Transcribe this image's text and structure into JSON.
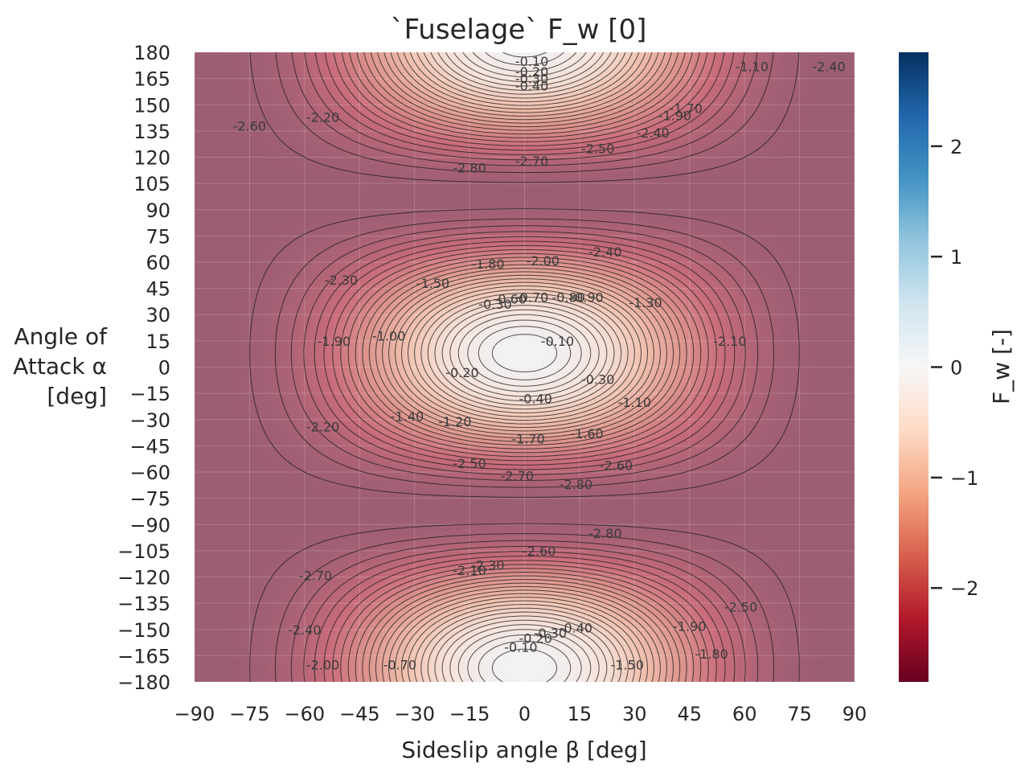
{
  "chart_data": {
    "type": "heatmap",
    "title": "`Fuselage` F_w [0]",
    "xlabel": "Sideslip angle β [deg]",
    "ylabel_lines": [
      "Angle of",
      "Attack α",
      "[deg]"
    ],
    "xlim": [
      -90,
      90
    ],
    "ylim": [
      -180,
      180
    ],
    "x_ticks": [
      -90,
      -75,
      -60,
      -45,
      -30,
      -15,
      0,
      15,
      30,
      45,
      60,
      75,
      90
    ],
    "y_ticks": [
      180,
      165,
      150,
      135,
      120,
      105,
      90,
      75,
      60,
      45,
      30,
      15,
      0,
      -15,
      -30,
      -45,
      -60,
      -75,
      -90,
      -105,
      -120,
      -135,
      -150,
      -165,
      -180
    ],
    "colormap": "RdBu",
    "color_range": [
      -2.85,
      2.85
    ],
    "colorbar_label": "F_w [-]",
    "colorbar_ticks": [
      2,
      1,
      0,
      -1,
      -2
    ],
    "grid": true,
    "contour_levels": [
      -0.1,
      -0.2,
      -0.3,
      -0.4,
      -0.5,
      -0.6,
      -0.7,
      -0.8,
      -0.9,
      -1.0,
      -1.1,
      -1.2,
      -1.3,
      -1.4,
      -1.5,
      -1.6,
      -1.7,
      -1.8,
      -1.9,
      -2.0,
      -2.1,
      -2.2,
      -2.3,
      -2.4,
      -2.5,
      -2.6,
      -2.7,
      -2.8
    ],
    "contour_labels": [
      {
        "text": "-0.10",
        "x": 2,
        "y": 175
      },
      {
        "text": "-0.20",
        "x": 2,
        "y": 169
      },
      {
        "text": "-0.30",
        "x": 2,
        "y": 165
      },
      {
        "text": "-0.40",
        "x": 2,
        "y": 161
      },
      {
        "text": "-1.10",
        "x": 62,
        "y": 172
      },
      {
        "text": "-2.40",
        "x": 83,
        "y": 172
      },
      {
        "text": "-1.70",
        "x": 44,
        "y": 148
      },
      {
        "text": "-1.90",
        "x": 41,
        "y": 144
      },
      {
        "text": "-2.40",
        "x": 35,
        "y": 134
      },
      {
        "text": "-2.20",
        "x": -55,
        "y": 143
      },
      {
        "text": "-2.60",
        "x": -75,
        "y": 138
      },
      {
        "text": "-2.50",
        "x": 20,
        "y": 125
      },
      {
        "text": "-2.70",
        "x": 2,
        "y": 118
      },
      {
        "text": "-2.80",
        "x": -15,
        "y": 114
      },
      {
        "text": "-2.40",
        "x": 22,
        "y": 66
      },
      {
        "text": "-2.00",
        "x": 5,
        "y": 61
      },
      {
        "text": "-1.80",
        "x": -10,
        "y": 59
      },
      {
        "text": "-2.30",
        "x": -50,
        "y": 50
      },
      {
        "text": "-1.50",
        "x": -25,
        "y": 48
      },
      {
        "text": "-0.60",
        "x": -4,
        "y": 39
      },
      {
        "text": "-0.70",
        "x": 2,
        "y": 40
      },
      {
        "text": "-0.80",
        "x": 12,
        "y": 40
      },
      {
        "text": "-0.90",
        "x": 17,
        "y": 40
      },
      {
        "text": "-0.30",
        "x": -8,
        "y": 36
      },
      {
        "text": "-1.30",
        "x": 33,
        "y": 37
      },
      {
        "text": "-0.10",
        "x": 9,
        "y": 15
      },
      {
        "text": "-1.90",
        "x": -52,
        "y": 15
      },
      {
        "text": "-1.00",
        "x": -37,
        "y": 18
      },
      {
        "text": "-2.10",
        "x": 56,
        "y": 15
      },
      {
        "text": "-0.20",
        "x": -17,
        "y": -3
      },
      {
        "text": "-0.30",
        "x": 20,
        "y": -7
      },
      {
        "text": "-0.40",
        "x": 3,
        "y": -18
      },
      {
        "text": "-1.10",
        "x": 30,
        "y": -20
      },
      {
        "text": "-1.40",
        "x": -32,
        "y": -28
      },
      {
        "text": "-1.20",
        "x": -19,
        "y": -31
      },
      {
        "text": "-2.20",
        "x": -55,
        "y": -34
      },
      {
        "text": "-1.70",
        "x": 1,
        "y": -41
      },
      {
        "text": "-1.60",
        "x": 17,
        "y": -38
      },
      {
        "text": "-2.50",
        "x": -15,
        "y": -55
      },
      {
        "text": "-2.60",
        "x": 25,
        "y": -56
      },
      {
        "text": "-2.70",
        "x": -2,
        "y": -62
      },
      {
        "text": "-2.80",
        "x": 14,
        "y": -67
      },
      {
        "text": "-2.80",
        "x": 22,
        "y": -95
      },
      {
        "text": "-2.60",
        "x": 4,
        "y": -105
      },
      {
        "text": "-2.70",
        "x": -57,
        "y": -119
      },
      {
        "text": "-2.30",
        "x": -10,
        "y": -113
      },
      {
        "text": "-2.10",
        "x": -15,
        "y": -116
      },
      {
        "text": "-2.40",
        "x": -60,
        "y": -150
      },
      {
        "text": "-1.90",
        "x": 45,
        "y": -148
      },
      {
        "text": "-2.50",
        "x": 59,
        "y": -137
      },
      {
        "text": "-1.80",
        "x": 51,
        "y": -164
      },
      {
        "text": "-0.10",
        "x": -1,
        "y": -160
      },
      {
        "text": "-0.20",
        "x": 3,
        "y": -155
      },
      {
        "text": "-0.30",
        "x": 7,
        "y": -152
      },
      {
        "text": "-0.40",
        "x": 14,
        "y": -149
      },
      {
        "text": "-0.70",
        "x": -34,
        "y": -170
      },
      {
        "text": "-2.00",
        "x": -55,
        "y": -170
      },
      {
        "text": "-1.50",
        "x": 28,
        "y": -170
      }
    ]
  }
}
